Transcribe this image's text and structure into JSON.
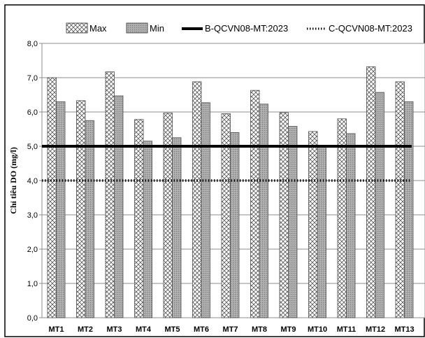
{
  "chart_data": {
    "type": "bar",
    "title": "",
    "xlabel": "",
    "ylabel": "Chỉ tiêu DO (mg/l)",
    "ylim": [
      0,
      8
    ],
    "yticks": [
      "0,0",
      "1,0",
      "2,0",
      "3,0",
      "4,0",
      "5,0",
      "6,0",
      "7,0",
      "8,0"
    ],
    "grid": true,
    "legend_position": "top",
    "categories": [
      "MT1",
      "MT2",
      "MT3",
      "MT4",
      "MT5",
      "MT6",
      "MT7",
      "MT8",
      "MT9",
      "MT10",
      "MT11",
      "MT12",
      "MT13"
    ],
    "series": [
      {
        "name": "Max",
        "pattern": "crosshatch",
        "values": [
          7.0,
          6.33,
          7.17,
          5.78,
          5.97,
          6.88,
          5.95,
          6.63,
          5.98,
          5.43,
          5.8,
          7.32,
          6.88
        ]
      },
      {
        "name": "Min",
        "pattern": "gray-fill",
        "values": [
          6.3,
          5.75,
          6.47,
          5.15,
          5.25,
          6.27,
          5.4,
          6.23,
          5.58,
          5.0,
          5.37,
          6.57,
          6.3
        ]
      }
    ],
    "reference_lines": [
      {
        "name": "B-QCVN08-MT:2023",
        "value": 5.0,
        "style": "solid",
        "color": "#000000"
      },
      {
        "name": "C-QCVN08-MT:2023",
        "value": 4.0,
        "style": "dotted",
        "color": "#000000"
      }
    ]
  }
}
